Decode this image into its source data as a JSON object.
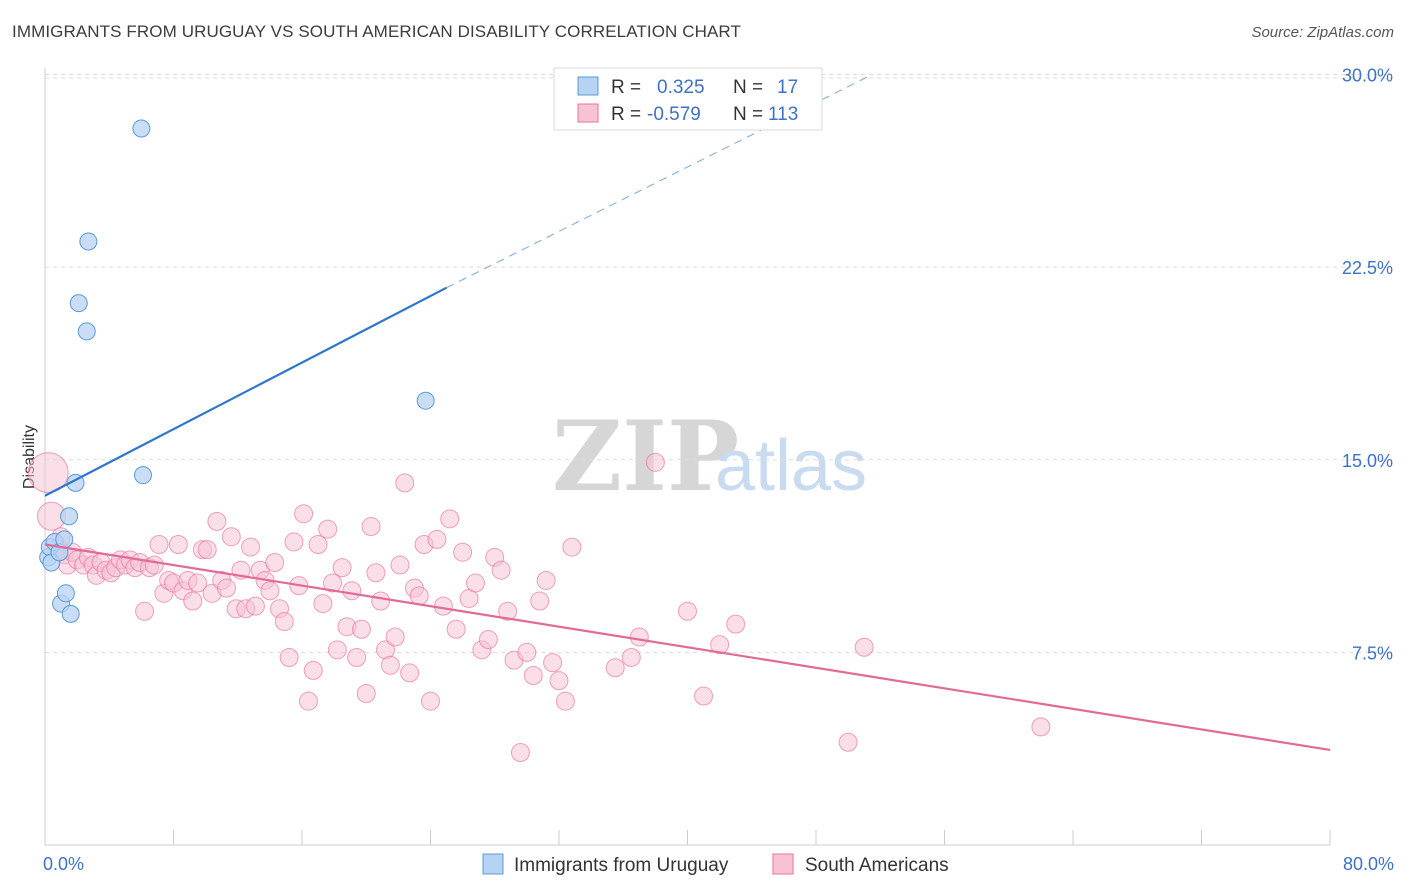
{
  "title": "IMMIGRANTS FROM URUGUAY VS SOUTH AMERICAN DISABILITY CORRELATION CHART",
  "source": "Source: ZipAtlas.com",
  "watermark": {
    "zip": "ZIP",
    "atlas": "atlas"
  },
  "colors": {
    "blue": "#5b9bd5",
    "blue_fill": "#b7d3f3",
    "blue_line": "#2e75cc",
    "pink": "#e8709a",
    "pink_fill": "#f6c3d5",
    "pink_line": "#e26a98",
    "tick_text": "#3d72c4",
    "grid": "#dddddd"
  },
  "legend": {
    "rows": [
      {
        "r_label": "R =",
        "r_value": "0.325",
        "n_label": "N =",
        "n_value": "17",
        "color": "blue"
      },
      {
        "r_label": "R =",
        "r_value": "-0.579",
        "n_label": "N =",
        "n_value": "113",
        "color": "pink"
      }
    ]
  },
  "bottom_legend": [
    {
      "label": "Immigrants from Uruguay",
      "color": "blue"
    },
    {
      "label": "South Americans",
      "color": "pink"
    }
  ],
  "chart_data": {
    "type": "scatter",
    "title": "IMMIGRANTS FROM URUGUAY VS SOUTH AMERICAN DISABILITY CORRELATION CHART",
    "xlabel": "",
    "ylabel": "Disability",
    "xlim": [
      0,
      80
    ],
    "ylim": [
      0,
      31.5
    ],
    "x_tick_labels": [
      "0.0%",
      "80.0%"
    ],
    "y_ticks": [
      7.5,
      15.0,
      22.5,
      30.0
    ],
    "y_tick_labels": [
      "7.5%",
      "15.0%",
      "22.5%",
      "30.0%"
    ],
    "grid": true,
    "legend_position": "top-center",
    "series": [
      {
        "name": "Immigrants from Uruguay",
        "color": "blue",
        "points": [
          [
            0.2,
            11.2
          ],
          [
            0.3,
            11.6
          ],
          [
            0.4,
            11.0
          ],
          [
            0.6,
            11.8
          ],
          [
            0.9,
            11.4
          ],
          [
            1.0,
            9.4
          ],
          [
            1.2,
            11.9
          ],
          [
            1.3,
            9.8
          ],
          [
            1.5,
            12.8
          ],
          [
            1.6,
            9.0
          ],
          [
            1.9,
            14.1
          ],
          [
            2.1,
            21.1
          ],
          [
            2.6,
            20.0
          ],
          [
            2.7,
            23.5
          ],
          [
            6.0,
            27.9
          ],
          [
            6.1,
            14.4
          ],
          [
            23.7,
            17.3
          ]
        ],
        "trend": {
          "x0": 0,
          "y0": 13.6,
          "x1": 25,
          "y1": 21.7,
          "dash_x1": 51.5,
          "dash_y1": 30.0
        }
      },
      {
        "name": "South Americans",
        "color": "pink",
        "points": [
          [
            0.2,
            14.5
          ],
          [
            0.4,
            12.8
          ],
          [
            0.8,
            11.6
          ],
          [
            1.0,
            12.0
          ],
          [
            1.2,
            11.3
          ],
          [
            1.4,
            10.9
          ],
          [
            1.7,
            11.4
          ],
          [
            2.0,
            11.1
          ],
          [
            2.4,
            10.9
          ],
          [
            2.7,
            11.2
          ],
          [
            3.0,
            10.9
          ],
          [
            3.2,
            10.5
          ],
          [
            3.5,
            11.0
          ],
          [
            3.8,
            10.7
          ],
          [
            4.1,
            10.6
          ],
          [
            4.4,
            10.8
          ],
          [
            4.7,
            11.1
          ],
          [
            5.0,
            10.9
          ],
          [
            5.3,
            11.1
          ],
          [
            5.6,
            10.8
          ],
          [
            5.9,
            11.0
          ],
          [
            6.2,
            9.1
          ],
          [
            6.5,
            10.8
          ],
          [
            6.8,
            10.9
          ],
          [
            7.1,
            11.7
          ],
          [
            7.4,
            9.8
          ],
          [
            7.7,
            10.3
          ],
          [
            8.0,
            10.2
          ],
          [
            8.3,
            11.7
          ],
          [
            8.6,
            9.9
          ],
          [
            8.9,
            10.3
          ],
          [
            9.2,
            9.5
          ],
          [
            9.5,
            10.2
          ],
          [
            9.8,
            11.5
          ],
          [
            10.1,
            11.5
          ],
          [
            10.4,
            9.8
          ],
          [
            10.7,
            12.6
          ],
          [
            11.0,
            10.3
          ],
          [
            11.3,
            10.0
          ],
          [
            11.6,
            12.0
          ],
          [
            11.9,
            9.2
          ],
          [
            12.2,
            10.7
          ],
          [
            12.5,
            9.2
          ],
          [
            12.8,
            11.6
          ],
          [
            13.1,
            9.3
          ],
          [
            13.4,
            10.7
          ],
          [
            13.7,
            10.3
          ],
          [
            14.0,
            9.9
          ],
          [
            14.3,
            11.0
          ],
          [
            14.6,
            9.2
          ],
          [
            14.9,
            8.7
          ],
          [
            15.2,
            7.3
          ],
          [
            15.5,
            11.8
          ],
          [
            15.8,
            10.1
          ],
          [
            16.1,
            12.9
          ],
          [
            16.4,
            5.6
          ],
          [
            16.7,
            6.8
          ],
          [
            17.0,
            11.7
          ],
          [
            17.3,
            9.4
          ],
          [
            17.6,
            12.3
          ],
          [
            17.9,
            10.2
          ],
          [
            18.2,
            7.6
          ],
          [
            18.5,
            10.8
          ],
          [
            18.8,
            8.5
          ],
          [
            19.1,
            9.9
          ],
          [
            19.4,
            7.3
          ],
          [
            19.7,
            8.4
          ],
          [
            20.0,
            5.9
          ],
          [
            20.3,
            12.4
          ],
          [
            20.6,
            10.6
          ],
          [
            20.9,
            9.5
          ],
          [
            21.2,
            7.6
          ],
          [
            21.5,
            7.0
          ],
          [
            21.8,
            8.1
          ],
          [
            22.1,
            10.9
          ],
          [
            22.4,
            14.1
          ],
          [
            22.7,
            6.7
          ],
          [
            23.0,
            10.0
          ],
          [
            23.3,
            9.7
          ],
          [
            23.6,
            11.7
          ],
          [
            24.0,
            5.6
          ],
          [
            24.4,
            11.9
          ],
          [
            24.8,
            9.3
          ],
          [
            25.2,
            12.7
          ],
          [
            25.6,
            8.4
          ],
          [
            26.0,
            11.4
          ],
          [
            26.4,
            9.6
          ],
          [
            26.8,
            10.2
          ],
          [
            27.2,
            7.6
          ],
          [
            27.6,
            8.0
          ],
          [
            28.0,
            11.2
          ],
          [
            28.4,
            10.7
          ],
          [
            28.8,
            9.1
          ],
          [
            29.2,
            7.2
          ],
          [
            29.6,
            3.6
          ],
          [
            30.0,
            7.5
          ],
          [
            30.4,
            6.6
          ],
          [
            30.8,
            9.5
          ],
          [
            31.2,
            10.3
          ],
          [
            31.6,
            7.1
          ],
          [
            32.0,
            6.4
          ],
          [
            32.4,
            5.6
          ],
          [
            32.8,
            11.6
          ],
          [
            35.5,
            6.9
          ],
          [
            36.5,
            7.3
          ],
          [
            37.0,
            8.1
          ],
          [
            38.0,
            14.9
          ],
          [
            40.0,
            9.1
          ],
          [
            41.0,
            5.8
          ],
          [
            42.0,
            7.8
          ],
          [
            43.0,
            8.6
          ],
          [
            50.0,
            4.0
          ],
          [
            51.0,
            7.7
          ],
          [
            62.0,
            4.6
          ]
        ],
        "trend": {
          "x0": 0,
          "y0": 11.7,
          "x1": 80,
          "y1": 3.7
        }
      }
    ]
  }
}
